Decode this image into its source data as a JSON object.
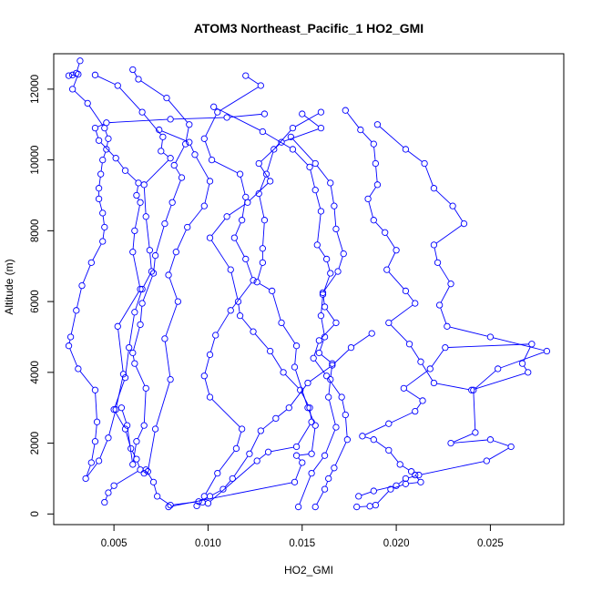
{
  "chart_data": {
    "type": "line",
    "title": "ATOM3 Northeast_Pacific_1 HO2_GMI",
    "xlabel": "HO2_GMI",
    "ylabel": "Altitude (m)",
    "xlim": [
      0.0018,
      0.0289
    ],
    "ylim": [
      -300,
      13000
    ],
    "xticks": [
      0.005,
      0.01,
      0.015,
      0.02,
      0.025
    ],
    "xtick_labels": [
      "0.005",
      "0.010",
      "0.015",
      "0.020",
      "0.025"
    ],
    "yticks": [
      0,
      2000,
      4000,
      6000,
      8000,
      10000,
      12000
    ],
    "ytick_labels": [
      "0",
      "2000",
      "4000",
      "6000",
      "8000",
      "10000",
      "12000"
    ],
    "grid": false,
    "legend": "none",
    "marker": "open-circle",
    "color": "#0000ff",
    "series": [
      {
        "values": [
          [
            0.0032,
            12800
          ],
          [
            0.003,
            12450
          ],
          [
            0.0028,
            12400
          ],
          [
            0.0026,
            12380
          ],
          [
            0.0031,
            12420
          ],
          [
            0.0028,
            12000
          ],
          [
            0.0036,
            11600
          ],
          [
            0.0045,
            10900
          ],
          [
            0.0047,
            10600
          ],
          [
            0.0046,
            10300
          ],
          [
            0.0044,
            10000
          ],
          [
            0.0043,
            9600
          ],
          [
            0.0042,
            9200
          ],
          [
            0.0042,
            8900
          ],
          [
            0.0044,
            8500
          ],
          [
            0.0045,
            8100
          ],
          [
            0.0044,
            7700
          ],
          [
            0.0038,
            7100
          ],
          [
            0.0033,
            6450
          ],
          [
            0.003,
            5750
          ],
          [
            0.0027,
            5000
          ],
          [
            0.0026,
            4750
          ],
          [
            0.0031,
            4100
          ],
          [
            0.004,
            3500
          ],
          [
            0.0041,
            2600
          ],
          [
            0.004,
            2050
          ],
          [
            0.0038,
            1450
          ],
          [
            0.0035,
            1000
          ],
          [
            0.0042,
            1500
          ],
          [
            0.0047,
            2150
          ],
          [
            0.0051,
            2950
          ],
          [
            0.0055,
            3950
          ],
          [
            0.0052,
            5300
          ],
          [
            0.0064,
            6350
          ],
          [
            0.006,
            7400
          ],
          [
            0.0061,
            8000
          ],
          [
            0.0064,
            8800
          ],
          [
            0.0062,
            9000
          ],
          [
            0.0063,
            9350
          ],
          [
            0.0056,
            9700
          ],
          [
            0.0051,
            10050
          ],
          [
            0.0042,
            10550
          ],
          [
            0.004,
            10900
          ],
          [
            0.0046,
            11050
          ],
          [
            0.008,
            11150
          ],
          [
            0.011,
            11200
          ],
          [
            0.013,
            11300
          ]
        ]
      },
      {
        "values": [
          [
            0.004,
            12400
          ],
          [
            0.0052,
            12100
          ],
          [
            0.0065,
            11350
          ],
          [
            0.0076,
            10650
          ],
          [
            0.0075,
            10250
          ],
          [
            0.008,
            10050
          ],
          [
            0.0066,
            9300
          ],
          [
            0.0067,
            8400
          ],
          [
            0.0069,
            7450
          ],
          [
            0.007,
            6850
          ],
          [
            0.0065,
            6350
          ],
          [
            0.0061,
            5700
          ],
          [
            0.0058,
            4700
          ],
          [
            0.0056,
            3850
          ],
          [
            0.005,
            2950
          ],
          [
            0.0056,
            2400
          ],
          [
            0.0059,
            1850
          ],
          [
            0.0062,
            1550
          ],
          [
            0.0064,
            1250
          ],
          [
            0.005,
            800
          ],
          [
            0.0047,
            600
          ],
          [
            0.0045,
            330
          ]
        ]
      },
      {
        "values": [
          [
            0.006,
            12550
          ],
          [
            0.0063,
            12280
          ],
          [
            0.0078,
            11750
          ],
          [
            0.009,
            11000
          ],
          [
            0.0088,
            10450
          ],
          [
            0.0082,
            9850
          ],
          [
            0.0086,
            9500
          ],
          [
            0.0081,
            8800
          ],
          [
            0.0077,
            8200
          ],
          [
            0.0072,
            7300
          ],
          [
            0.0071,
            6800
          ],
          [
            0.0065,
            5950
          ],
          [
            0.0064,
            5350
          ],
          [
            0.006,
            4550
          ],
          [
            0.0061,
            4250
          ],
          [
            0.0067,
            3550
          ],
          [
            0.0066,
            2500
          ],
          [
            0.0062,
            2050
          ],
          [
            0.006,
            1400
          ],
          [
            0.0057,
            2500
          ],
          [
            0.0054,
            3000
          ]
        ]
      },
      {
        "values": [
          [
            0.0074,
            10850
          ],
          [
            0.009,
            10500
          ],
          [
            0.0093,
            10150
          ],
          [
            0.0101,
            9400
          ],
          [
            0.0098,
            8700
          ],
          [
            0.0089,
            8100
          ],
          [
            0.0083,
            7400
          ],
          [
            0.0079,
            6750
          ],
          [
            0.0084,
            6000
          ],
          [
            0.0077,
            4950
          ],
          [
            0.008,
            3800
          ],
          [
            0.0072,
            2400
          ],
          [
            0.0068,
            1200
          ],
          [
            0.0066,
            1150
          ],
          [
            0.0067,
            1250
          ],
          [
            0.0071,
            900
          ],
          [
            0.0073,
            500
          ],
          [
            0.008,
            250
          ],
          [
            0.0095,
            350
          ],
          [
            0.0101,
            500
          ],
          [
            0.0108,
            700
          ],
          [
            0.0113,
            1000
          ],
          [
            0.0122,
            1700
          ],
          [
            0.0128,
            2350
          ],
          [
            0.0136,
            2700
          ],
          [
            0.0143,
            3000
          ],
          [
            0.0153,
            3700
          ],
          [
            0.0166,
            4200
          ],
          [
            0.0176,
            4700
          ],
          [
            0.0187,
            5100
          ]
        ]
      },
      {
        "values": [
          [
            0.012,
            12380
          ],
          [
            0.0128,
            12100
          ],
          [
            0.0105,
            11350
          ],
          [
            0.0098,
            10600
          ],
          [
            0.0102,
            10000
          ],
          [
            0.0117,
            9600
          ],
          [
            0.012,
            8950
          ],
          [
            0.0118,
            8300
          ],
          [
            0.0114,
            7800
          ],
          [
            0.012,
            7200
          ],
          [
            0.0124,
            6600
          ],
          [
            0.0112,
            5750
          ],
          [
            0.0104,
            5050
          ],
          [
            0.0101,
            4500
          ],
          [
            0.0098,
            3900
          ],
          [
            0.0101,
            3300
          ],
          [
            0.0118,
            2400
          ],
          [
            0.0115,
            1850
          ],
          [
            0.0105,
            1150
          ],
          [
            0.0098,
            500
          ],
          [
            0.0097,
            330
          ],
          [
            0.0094,
            230
          ]
        ]
      },
      {
        "values": [
          [
            0.015,
            11300
          ],
          [
            0.016,
            10900
          ],
          [
            0.0139,
            10500
          ],
          [
            0.0127,
            9900
          ],
          [
            0.0133,
            9400
          ],
          [
            0.0121,
            8800
          ],
          [
            0.011,
            8400
          ],
          [
            0.0101,
            7800
          ],
          [
            0.0112,
            6900
          ],
          [
            0.0116,
            6000
          ],
          [
            0.0117,
            5600
          ],
          [
            0.0124,
            5150
          ],
          [
            0.0133,
            4600
          ],
          [
            0.014,
            4000
          ],
          [
            0.0149,
            3500
          ],
          [
            0.0154,
            3000
          ],
          [
            0.0155,
            2600
          ],
          [
            0.0147,
            1900
          ],
          [
            0.0132,
            1750
          ],
          [
            0.0126,
            1500
          ],
          [
            0.01,
            300
          ]
        ]
      },
      {
        "values": [
          [
            0.016,
            11350
          ],
          [
            0.0145,
            10900
          ],
          [
            0.0135,
            10300
          ],
          [
            0.0131,
            9600
          ],
          [
            0.0127,
            9050
          ],
          [
            0.013,
            8300
          ],
          [
            0.0129,
            7500
          ],
          [
            0.0129,
            7100
          ],
          [
            0.0126,
            6550
          ],
          [
            0.0134,
            6300
          ],
          [
            0.0139,
            5400
          ],
          [
            0.0147,
            4750
          ],
          [
            0.0146,
            4150
          ],
          [
            0.0153,
            3000
          ],
          [
            0.0157,
            2500
          ],
          [
            0.0155,
            1700
          ],
          [
            0.0147,
            1650
          ],
          [
            0.015,
            1450
          ],
          [
            0.0146,
            900
          ],
          [
            0.0079,
            200
          ]
        ]
      },
      {
        "values": [
          [
            0.0103,
            11500
          ],
          [
            0.0129,
            10800
          ],
          [
            0.0145,
            10300
          ],
          [
            0.0154,
            9800
          ],
          [
            0.0157,
            9150
          ],
          [
            0.016,
            8550
          ],
          [
            0.0158,
            7600
          ],
          [
            0.0163,
            7200
          ],
          [
            0.0165,
            6800
          ],
          [
            0.0161,
            6200
          ],
          [
            0.016,
            5600
          ],
          [
            0.0162,
            5000
          ],
          [
            0.0159,
            4550
          ],
          [
            0.0166,
            4250
          ],
          [
            0.0165,
            3800
          ],
          [
            0.0164,
            3300
          ],
          [
            0.0168,
            2450
          ],
          [
            0.0162,
            1650
          ],
          [
            0.0155,
            1150
          ],
          [
            0.0148,
            200
          ]
        ]
      },
      {
        "values": [
          [
            0.0144,
            10650
          ],
          [
            0.0157,
            9900
          ],
          [
            0.0165,
            9350
          ],
          [
            0.0167,
            8700
          ],
          [
            0.0168,
            8050
          ],
          [
            0.0172,
            7350
          ],
          [
            0.0169,
            6850
          ],
          [
            0.0161,
            6250
          ],
          [
            0.0162,
            5850
          ],
          [
            0.0168,
            5400
          ],
          [
            0.0159,
            4900
          ],
          [
            0.0156,
            4400
          ],
          [
            0.0163,
            3900
          ],
          [
            0.0171,
            3300
          ],
          [
            0.0173,
            2800
          ],
          [
            0.0174,
            2100
          ],
          [
            0.0167,
            1300
          ],
          [
            0.0164,
            1000
          ],
          [
            0.0162,
            700
          ],
          [
            0.0157,
            200
          ]
        ]
      },
      {
        "values": [
          [
            0.0173,
            11400
          ],
          [
            0.0181,
            10850
          ],
          [
            0.0188,
            10450
          ],
          [
            0.0189,
            9900
          ],
          [
            0.019,
            9300
          ],
          [
            0.0185,
            8900
          ],
          [
            0.0188,
            8300
          ],
          [
            0.0194,
            7950
          ],
          [
            0.02,
            7450
          ],
          [
            0.0195,
            6900
          ],
          [
            0.0205,
            6300
          ],
          [
            0.021,
            5950
          ],
          [
            0.0196,
            5400
          ],
          [
            0.0207,
            4800
          ],
          [
            0.0213,
            4300
          ],
          [
            0.022,
            3700
          ],
          [
            0.024,
            3500
          ],
          [
            0.027,
            4000
          ],
          [
            0.0267,
            4250
          ],
          [
            0.0272,
            4800
          ],
          [
            0.0226,
            4700
          ],
          [
            0.0218,
            4100
          ],
          [
            0.0204,
            3550
          ],
          [
            0.0214,
            3200
          ],
          [
            0.021,
            2900
          ],
          [
            0.0196,
            2550
          ],
          [
            0.0182,
            2200
          ],
          [
            0.0188,
            2100
          ],
          [
            0.0196,
            1800
          ],
          [
            0.0202,
            1400
          ],
          [
            0.0208,
            1200
          ],
          [
            0.021,
            1100
          ],
          [
            0.0213,
            900
          ],
          [
            0.0205,
            850
          ],
          [
            0.0197,
            700
          ],
          [
            0.0189,
            250
          ],
          [
            0.0186,
            220
          ],
          [
            0.0179,
            200
          ]
        ]
      },
      {
        "values": [
          [
            0.019,
            11000
          ],
          [
            0.0205,
            10300
          ],
          [
            0.0215,
            9900
          ],
          [
            0.022,
            9200
          ],
          [
            0.023,
            8700
          ],
          [
            0.0236,
            8200
          ],
          [
            0.022,
            7600
          ],
          [
            0.0222,
            7100
          ],
          [
            0.0229,
            6500
          ],
          [
            0.0223,
            5900
          ],
          [
            0.0227,
            5300
          ],
          [
            0.025,
            5000
          ],
          [
            0.028,
            4600
          ],
          [
            0.0254,
            4100
          ],
          [
            0.0241,
            3500
          ],
          [
            0.0242,
            2300
          ],
          [
            0.0229,
            2000
          ],
          [
            0.025,
            2100
          ],
          [
            0.0261,
            1900
          ],
          [
            0.0248,
            1500
          ],
          [
            0.0212,
            1100
          ],
          [
            0.0205,
            1000
          ],
          [
            0.02,
            800
          ],
          [
            0.0188,
            650
          ],
          [
            0.018,
            500
          ]
        ]
      }
    ]
  }
}
